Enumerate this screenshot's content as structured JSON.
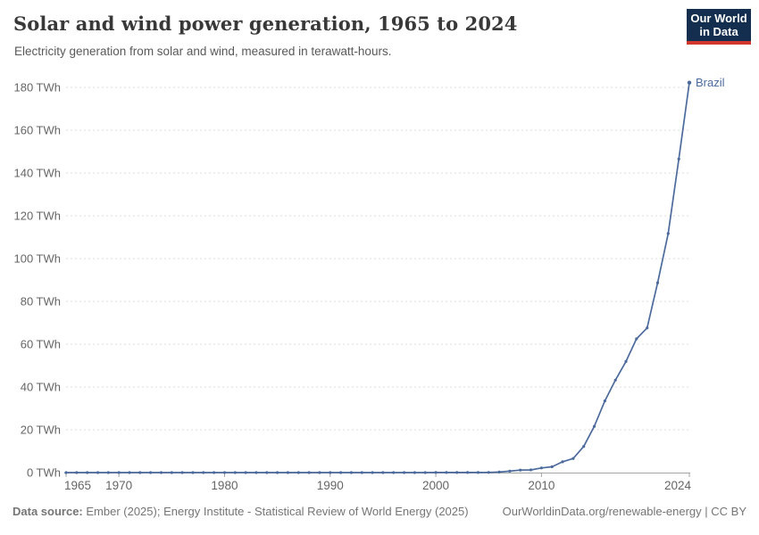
{
  "header": {
    "title": "Solar and wind power generation, 1965 to 2024",
    "subtitle": "Electricity generation from solar and wind, measured in terawatt-hours."
  },
  "logo": {
    "line1": "Our World",
    "line2": "in Data",
    "bg_color": "#132e4e",
    "accent_color": "#d2372c"
  },
  "chart_data": {
    "type": "line",
    "title": "Solar and wind power generation, 1965 to 2024",
    "unit": "terawatt-hours",
    "ytick_suffix": " TWh",
    "ylim": [
      0,
      180
    ],
    "yticks": [
      0,
      20,
      40,
      60,
      80,
      100,
      120,
      140,
      160,
      180
    ],
    "xticks": [
      1965,
      1970,
      1980,
      1990,
      2000,
      2010,
      2024
    ],
    "grid": "horizontal-dashed",
    "legend_position": "end-of-line-label",
    "x": [
      1965,
      1966,
      1967,
      1968,
      1969,
      1970,
      1971,
      1972,
      1973,
      1974,
      1975,
      1976,
      1977,
      1978,
      1979,
      1980,
      1981,
      1982,
      1983,
      1984,
      1985,
      1986,
      1987,
      1988,
      1989,
      1990,
      1991,
      1992,
      1993,
      1994,
      1995,
      1996,
      1997,
      1998,
      1999,
      2000,
      2001,
      2002,
      2003,
      2004,
      2005,
      2006,
      2007,
      2008,
      2009,
      2010,
      2011,
      2012,
      2013,
      2014,
      2015,
      2016,
      2017,
      2018,
      2019,
      2020,
      2021,
      2022,
      2023,
      2024
    ],
    "series": [
      {
        "name": "Brazil",
        "color": "#4c6a9c",
        "values": [
          0,
          0,
          0,
          0,
          0,
          0,
          0,
          0,
          0,
          0,
          0,
          0,
          0,
          0,
          0,
          0,
          0,
          0,
          0,
          0,
          0,
          0,
          0,
          0,
          0,
          0,
          0,
          0,
          0,
          0,
          0,
          0,
          0,
          0,
          0,
          0.06,
          0.05,
          0.06,
          0.06,
          0.06,
          0.09,
          0.24,
          0.66,
          1.18,
          1.24,
          2.18,
          2.71,
          5.05,
          6.58,
          12.2,
          21.6,
          33.5,
          43.2,
          51.9,
          62.5,
          67.6,
          88.7,
          111.7,
          146.5,
          182.2
        ]
      }
    ],
    "axis_color": "#a3a3a3",
    "grid_color": "#dcdcdc",
    "tick_label_color": "#666666"
  },
  "footer": {
    "source_label": "Data source:",
    "source_text": " Ember (2025); Energy Institute - Statistical Review of World Energy (2025)",
    "right_text": "OurWorldinData.org/renewable-energy | CC BY"
  }
}
